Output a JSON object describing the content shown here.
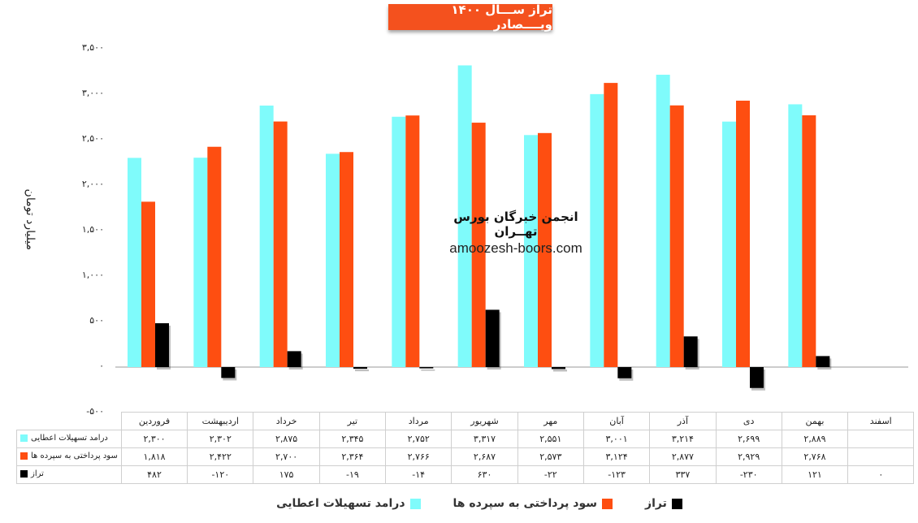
{
  "title": "تراز ســـال ۱۴۰۰ ویــــصادر",
  "ylabel": "میلیارد تومان",
  "watermark": {
    "line1": "انجمن خبرگان بورس تهــران",
    "line2": "amoozesh-boors.com"
  },
  "colors": {
    "series1": "#7ffbfb",
    "series2": "#fe4e11",
    "series3": "#000000"
  },
  "chart_data": {
    "type": "bar",
    "ylim": [
      -500,
      3500
    ],
    "yticks": [
      -500,
      0,
      500,
      1000,
      1500,
      2000,
      2500,
      3000,
      3500
    ],
    "ytick_labels": [
      "-۵۰۰",
      "۰",
      "۵۰۰",
      "۱,۰۰۰",
      "۱,۵۰۰",
      "۲,۰۰۰",
      "۲,۵۰۰",
      "۳,۰۰۰",
      "۳,۵۰۰"
    ],
    "categories": [
      "فروردین",
      "اردیبهشت",
      "خرداد",
      "تیر",
      "مرداد",
      "شهریور",
      "مهر",
      "آبان",
      "آذر",
      "دی",
      "بهمن",
      "اسفند"
    ],
    "series": [
      {
        "name": "درامد تسهیلات اعطایی",
        "values": [
          2300,
          2302,
          2875,
          2345,
          2752,
          3317,
          2551,
          3001,
          3214,
          2699,
          2889,
          null
        ],
        "labels": [
          "۲,۳۰۰",
          "۲,۳۰۲",
          "۲,۸۷۵",
          "۲,۳۴۵",
          "۲,۷۵۲",
          "۳,۳۱۷",
          "۲,۵۵۱",
          "۳,۰۰۱",
          "۳,۲۱۴",
          "۲,۶۹۹",
          "۲,۸۸۹",
          ""
        ]
      },
      {
        "name": "سود پرداختی به سپرده ها",
        "values": [
          1818,
          2422,
          2700,
          2364,
          2766,
          2687,
          2573,
          3124,
          2877,
          2929,
          2768,
          null
        ],
        "labels": [
          "۱,۸۱۸",
          "۲,۴۲۲",
          "۲,۷۰۰",
          "۲,۳۶۴",
          "۲,۷۶۶",
          "۲,۶۸۷",
          "۲,۵۷۳",
          "۳,۱۲۴",
          "۲,۸۷۷",
          "۲,۹۲۹",
          "۲,۷۶۸",
          ""
        ]
      },
      {
        "name": "تراز",
        "values": [
          482,
          -120,
          175,
          -19,
          -14,
          630,
          -22,
          -123,
          337,
          -230,
          121,
          0
        ],
        "labels": [
          "۴۸۲",
          "-۱۲۰",
          "۱۷۵",
          "-۱۹",
          "-۱۴",
          "۶۳۰",
          "-۲۲",
          "-۱۲۳",
          "۳۳۷",
          "-۲۳۰",
          "۱۲۱",
          "۰"
        ]
      }
    ],
    "legend_position": "bottom",
    "grid": false
  }
}
